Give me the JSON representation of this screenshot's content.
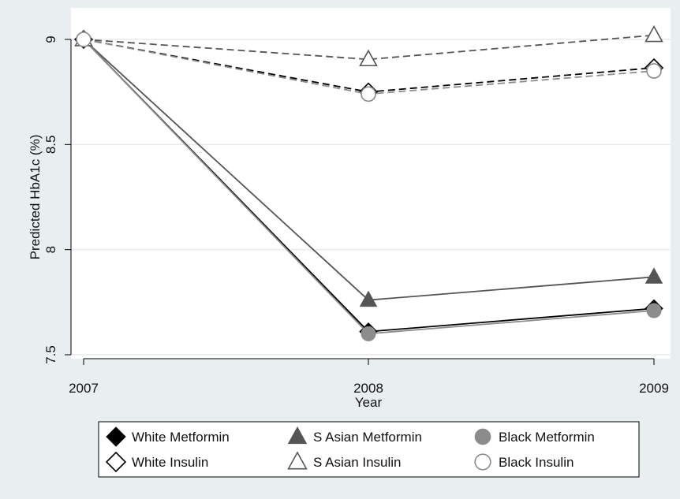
{
  "chart_data": {
    "type": "line",
    "xlabel": "Year",
    "ylabel": "Predicted HbA1c (%)",
    "x": [
      2007,
      2008,
      2009
    ],
    "x_ticks": [
      "2007",
      "2008",
      "2009"
    ],
    "y_ticks": [
      "7.5",
      "8",
      "8.5",
      "9"
    ],
    "ylim": [
      7.45,
      9.1
    ],
    "grid": "horizontal",
    "legend": "bottom",
    "series": [
      {
        "name": "White Metformin",
        "values": [
          9.0,
          7.61,
          7.72
        ],
        "marker": "diamond",
        "filled": true,
        "line": "solid",
        "color": "#000000"
      },
      {
        "name": "S Asian Metformin",
        "values": [
          9.0,
          7.76,
          7.87
        ],
        "marker": "triangle",
        "filled": true,
        "line": "solid",
        "color": "#555555"
      },
      {
        "name": "Black Metformin",
        "values": [
          9.0,
          7.6,
          7.71
        ],
        "marker": "circle",
        "filled": true,
        "line": "solid",
        "color": "#8c8c8c"
      },
      {
        "name": "White Insulin",
        "values": [
          9.0,
          8.75,
          8.865
        ],
        "marker": "diamond",
        "filled": false,
        "line": "dashed",
        "color": "#000000"
      },
      {
        "name": "S Asian Insulin",
        "values": [
          9.0,
          8.905,
          9.02
        ],
        "marker": "triangle",
        "filled": false,
        "line": "dashed",
        "color": "#555555"
      },
      {
        "name": "Black Insulin",
        "values": [
          9.0,
          8.74,
          8.85
        ],
        "marker": "circle",
        "filled": false,
        "line": "dashed",
        "color": "#8c8c8c"
      }
    ]
  }
}
